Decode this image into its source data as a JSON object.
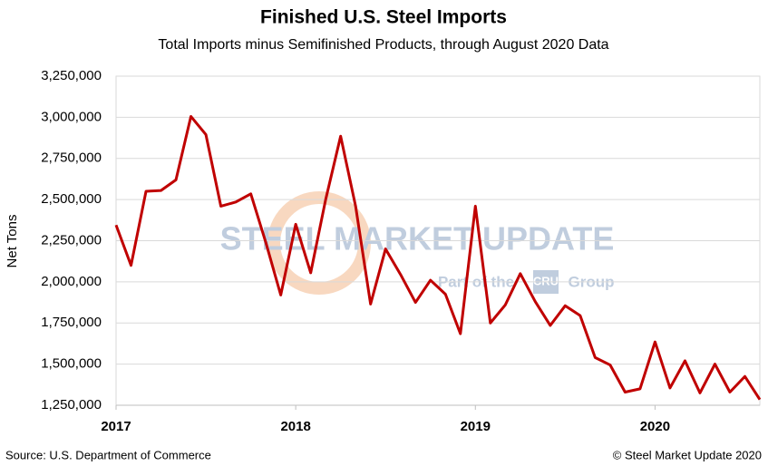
{
  "chart_data": {
    "type": "line",
    "title": "Finished U.S. Steel Imports",
    "subtitle": "Total Imports minus Semifinished Products, through August 2020 Data",
    "y_label": "Net Tons",
    "source": "Source: U.S. Department of Commerce",
    "credit": "© Steel Market Update 2020",
    "watermark": {
      "brand": "STEEL MARKET UPDATE",
      "tagline": "Part of the",
      "logo": "CRU",
      "group": "Group"
    },
    "categories": [
      "2017",
      null,
      null,
      null,
      null,
      null,
      null,
      null,
      null,
      null,
      null,
      null,
      "2018",
      null,
      null,
      null,
      null,
      null,
      null,
      null,
      null,
      null,
      null,
      null,
      "2019",
      null,
      null,
      null,
      null,
      null,
      null,
      null,
      null,
      null,
      null,
      null,
      "2020",
      null,
      null,
      null,
      null,
      null,
      null,
      null
    ],
    "series": [
      {
        "name": "Finished U.S. Steel Imports",
        "color": "#c00000",
        "values": [
          2345000,
          2100000,
          2550000,
          2555000,
          2620000,
          3005000,
          2895000,
          2460000,
          2485000,
          2535000,
          2240000,
          1920000,
          2350000,
          2055000,
          2500000,
          2885000,
          2460000,
          1865000,
          2200000,
          2045000,
          1875000,
          2010000,
          1925000,
          1685000,
          2460000,
          1750000,
          1860000,
          2050000,
          1880000,
          1735000,
          1855000,
          1795000,
          1540000,
          1495000,
          1330000,
          1350000,
          1635000,
          1355000,
          1520000,
          1325000,
          1500000,
          1330000,
          1425000,
          1285000
        ]
      }
    ],
    "ylim": [
      1250000,
      3250000
    ],
    "yticks": [
      {
        "value": 1250000,
        "label": "1,250,000"
      },
      {
        "value": 1500000,
        "label": "1,500,000"
      },
      {
        "value": 1750000,
        "label": "1,750,000"
      },
      {
        "value": 2000000,
        "label": "2,000,000"
      },
      {
        "value": 2250000,
        "label": "2,250,000"
      },
      {
        "value": 2500000,
        "label": "2,500,000"
      },
      {
        "value": 2750000,
        "label": "2,750,000"
      },
      {
        "value": 3000000,
        "label": "3,000,000"
      },
      {
        "value": 3250000,
        "label": "3,250,000"
      }
    ],
    "grid": true
  }
}
